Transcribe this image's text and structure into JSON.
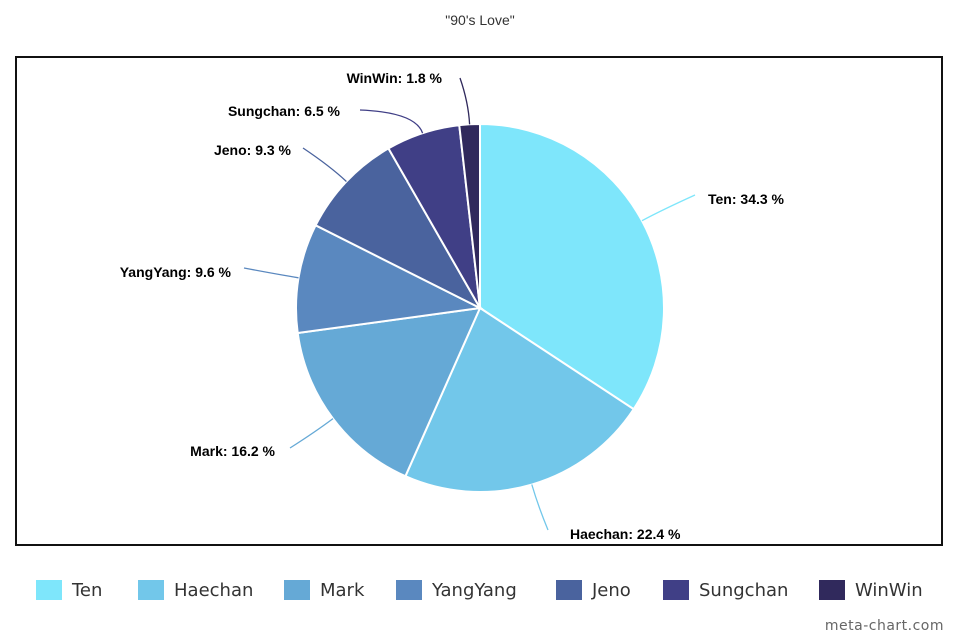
{
  "chart_data": {
    "type": "pie",
    "title": "\"90's Love\"",
    "slices": [
      {
        "name": "Ten",
        "value": 34.3,
        "label": "Ten: 34.3 %",
        "color": "#7EE6FB"
      },
      {
        "name": "Haechan",
        "value": 22.4,
        "label": "Haechan: 22.4 %",
        "color": "#72C7EA"
      },
      {
        "name": "Mark",
        "value": 16.2,
        "label": "Mark: 16.2 %",
        "color": "#65A9D6"
      },
      {
        "name": "YangYang",
        "value": 9.6,
        "label": "YangYang: 9.6 %",
        "color": "#5A88BF"
      },
      {
        "name": "Jeno",
        "value": 9.3,
        "label": "Jeno: 9.3 %",
        "color": "#4A639E"
      },
      {
        "name": "Sungchan",
        "value": 6.5,
        "label": "Sungchan: 6.5 %",
        "color": "#403F86"
      },
      {
        "name": "WinWin",
        "value": 1.8,
        "label": "WinWin: 1.8 %",
        "color": "#30295C"
      }
    ],
    "legend_position": "bottom"
  },
  "watermark": "meta-chart.com"
}
